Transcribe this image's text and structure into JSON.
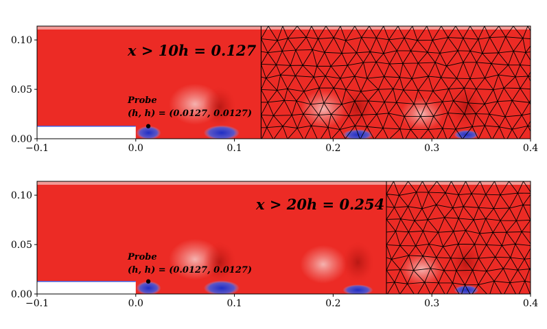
{
  "chart_data": [
    {
      "type": "heatmap",
      "title": "",
      "xlabel": "",
      "ylabel": "",
      "xlim": [
        -0.1,
        0.4
      ],
      "ylim": [
        0.0,
        0.114
      ],
      "x_ticks": [
        -0.1,
        0.0,
        0.1,
        0.2,
        0.3,
        0.4
      ],
      "x_tick_labels": [
        "−0.1",
        "0.0",
        "0.1",
        "0.2",
        "0.3",
        "0.4"
      ],
      "y_ticks": [
        0.0,
        0.05,
        0.1
      ],
      "y_tick_labels": [
        "0.00",
        "0.05",
        "0.10"
      ],
      "coarse_mesh_start_x": 0.127,
      "step": {
        "x_end": 0.0,
        "height": 0.0127
      },
      "probe": {
        "x": 0.0127,
        "y": 0.0127
      },
      "hotspots_x": [
        0.085,
        0.225,
        0.335
      ],
      "annotation": "x > 10h = 0.127",
      "probe_label": "Probe",
      "probe_coords": "(h, h) = (0.0127, 0.0127)"
    },
    {
      "type": "heatmap",
      "title": "",
      "xlabel": "",
      "ylabel": "",
      "xlim": [
        -0.1,
        0.4
      ],
      "ylim": [
        0.0,
        0.114
      ],
      "x_ticks": [
        -0.1,
        0.0,
        0.1,
        0.2,
        0.3,
        0.4
      ],
      "x_tick_labels": [
        "−0.1",
        "0.0",
        "0.1",
        "0.2",
        "0.3",
        "0.4"
      ],
      "y_ticks": [
        0.0,
        0.05,
        0.1
      ],
      "y_tick_labels": [
        "0.00",
        "0.05",
        "0.10"
      ],
      "coarse_mesh_start_x": 0.254,
      "step": {
        "x_end": 0.0,
        "height": 0.0127
      },
      "probe": {
        "x": 0.0127,
        "y": 0.0127
      },
      "hotspots_x": [
        0.085,
        0.225,
        0.335
      ],
      "annotation": "x > 20h = 0.254",
      "probe_label": "Probe",
      "probe_coords": "(h, h) = (0.0127, 0.0127)"
    }
  ],
  "colors": {
    "field_red": "#ec2b25",
    "field_dark": "#c41612",
    "low_blue": "#2232c8",
    "mesh": "#000000"
  }
}
